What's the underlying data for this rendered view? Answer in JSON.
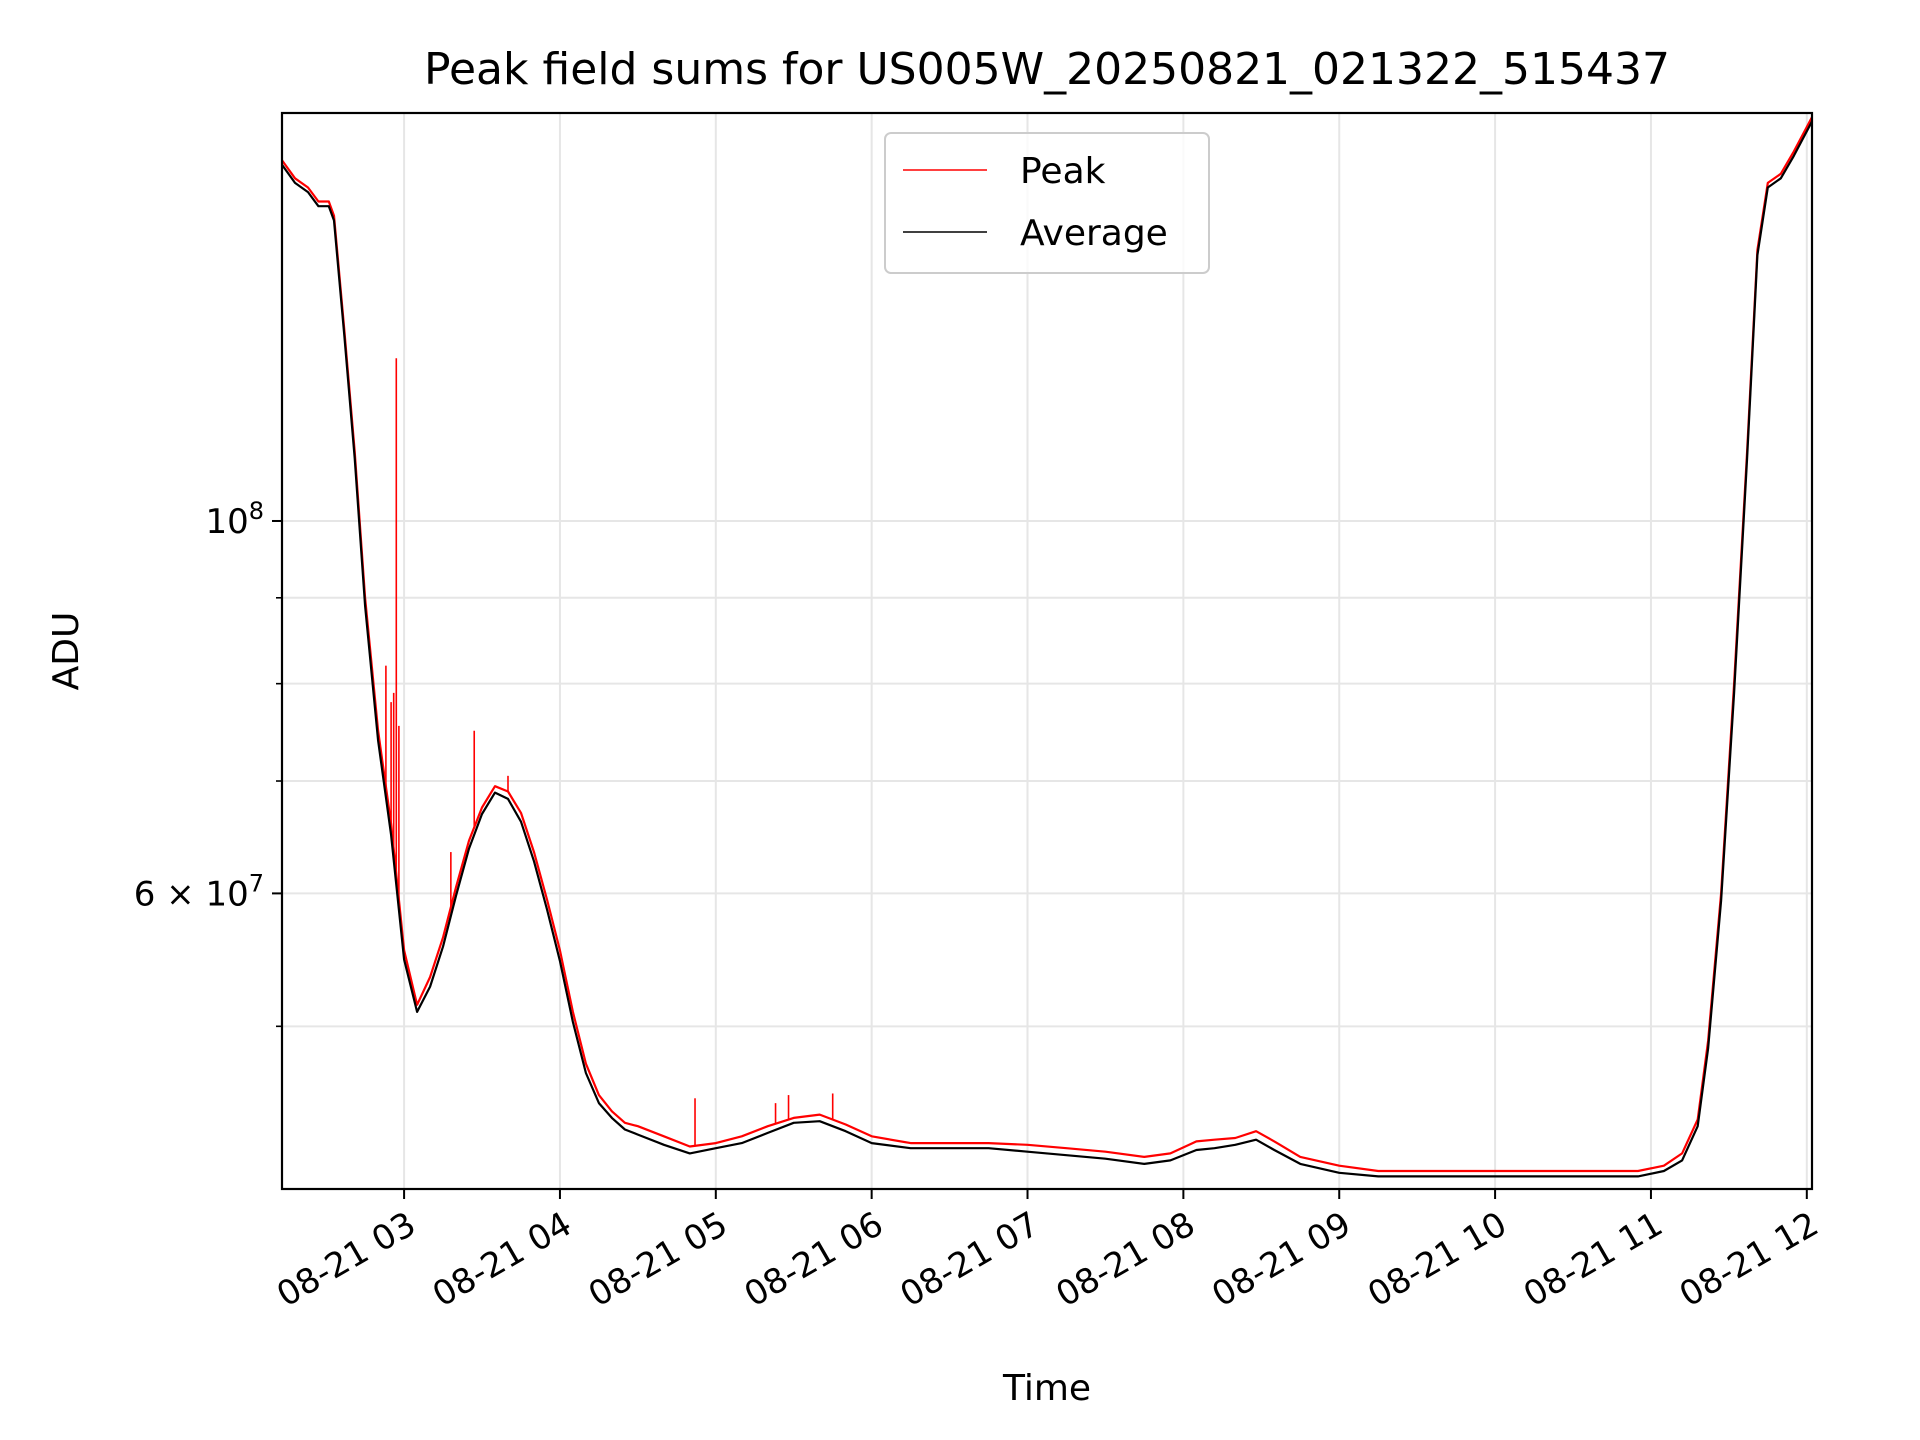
{
  "chart_data": {
    "type": "line",
    "title": "Peak field sums for US005W_20250821_021322_515437",
    "xlabel": "Time",
    "ylabel": "ADU",
    "x_tick_labels": [
      "08-21 03",
      "08-21 04",
      "08-21 05",
      "08-21 06",
      "08-21 07",
      "08-21 08",
      "08-21 09",
      "08-21 10",
      "08-21 11",
      "08-21 12"
    ],
    "x_ticks": [
      "2025-08-21 03:00",
      "2025-08-21 04:00",
      "2025-08-21 05:00",
      "2025-08-21 06:00",
      "2025-08-21 07:00",
      "2025-08-21 08:00",
      "2025-08-21 09:00",
      "2025-08-21 10:00",
      "2025-08-21 11:00",
      "2025-08-21 12:00"
    ],
    "xlim": [
      "2025-08-21 02:13",
      "2025-08-21 12:02"
    ],
    "y_scale": "log",
    "ylim": [
      40000000,
      175000000
    ],
    "y_tick_labels": [
      {
        "value": 100000000,
        "base": "10",
        "exp": "8"
      },
      {
        "value": 60000000,
        "base": "6 × 10",
        "exp": "7"
      }
    ],
    "y_minor_ticks": [
      50000000,
      70000000,
      80000000,
      90000000
    ],
    "grid": true,
    "legend_position": "upper center",
    "series": [
      {
        "name": "Peak",
        "color": "#ff0000",
        "x": [
          "2025-08-21 02:13",
          "2025-08-21 02:18",
          "2025-08-21 02:23",
          "2025-08-21 02:27",
          "2025-08-21 02:31",
          "2025-08-21 02:33",
          "2025-08-21 02:37",
          "2025-08-21 02:41",
          "2025-08-21 02:45",
          "2025-08-21 02:50",
          "2025-08-21 02:55",
          "2025-08-21 03:00",
          "2025-08-21 03:05",
          "2025-08-21 03:10",
          "2025-08-21 03:15",
          "2025-08-21 03:20",
          "2025-08-21 03:25",
          "2025-08-21 03:30",
          "2025-08-21 03:35",
          "2025-08-21 03:40",
          "2025-08-21 03:45",
          "2025-08-21 03:50",
          "2025-08-21 03:55",
          "2025-08-21 04:00",
          "2025-08-21 04:05",
          "2025-08-21 04:10",
          "2025-08-21 04:15",
          "2025-08-21 04:20",
          "2025-08-21 04:25",
          "2025-08-21 04:30",
          "2025-08-21 04:40",
          "2025-08-21 04:50",
          "2025-08-21 05:00",
          "2025-08-21 05:10",
          "2025-08-21 05:20",
          "2025-08-21 05:30",
          "2025-08-21 05:40",
          "2025-08-21 05:50",
          "2025-08-21 06:00",
          "2025-08-21 06:15",
          "2025-08-21 06:30",
          "2025-08-21 06:45",
          "2025-08-21 07:00",
          "2025-08-21 07:15",
          "2025-08-21 07:30",
          "2025-08-21 07:45",
          "2025-08-21 07:55",
          "2025-08-21 08:05",
          "2025-08-21 08:12",
          "2025-08-21 08:20",
          "2025-08-21 08:28",
          "2025-08-21 08:35",
          "2025-08-21 08:45",
          "2025-08-21 09:00",
          "2025-08-21 09:15",
          "2025-08-21 09:30",
          "2025-08-21 10:00",
          "2025-08-21 10:30",
          "2025-08-21 10:55",
          "2025-08-21 11:05",
          "2025-08-21 11:12",
          "2025-08-21 11:18",
          "2025-08-21 11:22",
          "2025-08-21 11:27",
          "2025-08-21 11:32",
          "2025-08-21 11:37",
          "2025-08-21 11:41",
          "2025-08-21 11:45",
          "2025-08-21 11:50",
          "2025-08-21 11:55",
          "2025-08-21 12:02"
        ],
        "values": [
          164000000,
          160000000,
          158000000,
          155000000,
          155000000,
          152000000,
          130000000,
          110000000,
          90000000,
          75000000,
          66000000,
          55500000,
          51500000,
          53500000,
          56500000,
          60500000,
          64500000,
          67500000,
          69500000,
          69000000,
          67000000,
          63500000,
          59500000,
          55500000,
          51000000,
          47500000,
          45500000,
          44500000,
          43800000,
          43600000,
          43000000,
          42400000,
          42600000,
          43000000,
          43600000,
          44100000,
          44300000,
          43700000,
          43000000,
          42600000,
          42600000,
          42600000,
          42500000,
          42300000,
          42100000,
          41800000,
          42000000,
          42700000,
          42800000,
          42900000,
          43300000,
          42700000,
          41800000,
          41300000,
          41000000,
          41000000,
          41000000,
          41000000,
          41000000,
          41300000,
          42000000,
          44000000,
          49000000,
          60000000,
          80000000,
          110000000,
          145000000,
          159000000,
          161000000,
          166000000,
          174000000
        ],
        "spikes": [
          {
            "x": "2025-08-21 02:53",
            "value": 82000000
          },
          {
            "x": "2025-08-21 02:55",
            "value": 78000000
          },
          {
            "x": "2025-08-21 02:56",
            "value": 79000000
          },
          {
            "x": "2025-08-21 02:57",
            "value": 125000000
          },
          {
            "x": "2025-08-21 02:58",
            "value": 75500000
          },
          {
            "x": "2025-08-21 03:18",
            "value": 63500000
          },
          {
            "x": "2025-08-21 03:27",
            "value": 75000000
          },
          {
            "x": "2025-08-21 03:40",
            "value": 70500000
          },
          {
            "x": "2025-08-21 04:52",
            "value": 45300000
          },
          {
            "x": "2025-08-21 05:23",
            "value": 45000000
          },
          {
            "x": "2025-08-21 05:28",
            "value": 45500000
          },
          {
            "x": "2025-08-21 05:45",
            "value": 45600000
          }
        ]
      },
      {
        "name": "Average",
        "color": "#000000",
        "x": [
          "2025-08-21 02:13",
          "2025-08-21 02:18",
          "2025-08-21 02:23",
          "2025-08-21 02:27",
          "2025-08-21 02:31",
          "2025-08-21 02:33",
          "2025-08-21 02:37",
          "2025-08-21 02:41",
          "2025-08-21 02:45",
          "2025-08-21 02:50",
          "2025-08-21 02:55",
          "2025-08-21 03:00",
          "2025-08-21 03:05",
          "2025-08-21 03:10",
          "2025-08-21 03:15",
          "2025-08-21 03:20",
          "2025-08-21 03:25",
          "2025-08-21 03:30",
          "2025-08-21 03:35",
          "2025-08-21 03:40",
          "2025-08-21 03:45",
          "2025-08-21 03:50",
          "2025-08-21 03:55",
          "2025-08-21 04:00",
          "2025-08-21 04:05",
          "2025-08-21 04:10",
          "2025-08-21 04:15",
          "2025-08-21 04:20",
          "2025-08-21 04:25",
          "2025-08-21 04:30",
          "2025-08-21 04:40",
          "2025-08-21 04:50",
          "2025-08-21 05:00",
          "2025-08-21 05:10",
          "2025-08-21 05:20",
          "2025-08-21 05:30",
          "2025-08-21 05:40",
          "2025-08-21 05:50",
          "2025-08-21 06:00",
          "2025-08-21 06:15",
          "2025-08-21 06:30",
          "2025-08-21 06:45",
          "2025-08-21 07:00",
          "2025-08-21 07:15",
          "2025-08-21 07:30",
          "2025-08-21 07:45",
          "2025-08-21 07:55",
          "2025-08-21 08:05",
          "2025-08-21 08:12",
          "2025-08-21 08:20",
          "2025-08-21 08:28",
          "2025-08-21 08:35",
          "2025-08-21 08:45",
          "2025-08-21 09:00",
          "2025-08-21 09:15",
          "2025-08-21 09:30",
          "2025-08-21 10:00",
          "2025-08-21 10:30",
          "2025-08-21 10:55",
          "2025-08-21 11:05",
          "2025-08-21 11:12",
          "2025-08-21 11:18",
          "2025-08-21 11:22",
          "2025-08-21 11:27",
          "2025-08-21 11:32",
          "2025-08-21 11:37",
          "2025-08-21 11:41",
          "2025-08-21 11:45",
          "2025-08-21 11:50",
          "2025-08-21 11:55",
          "2025-08-21 12:02"
        ],
        "values": [
          163000000,
          159000000,
          157000000,
          154000000,
          154000000,
          151000000,
          129000000,
          109000000,
          89000000,
          74000000,
          65000000,
          54800000,
          51000000,
          52800000,
          55800000,
          59800000,
          63800000,
          66900000,
          68900000,
          68300000,
          66200000,
          62700000,
          58700000,
          54700000,
          50300000,
          46900000,
          45000000,
          44100000,
          43400000,
          43100000,
          42500000,
          42000000,
          42300000,
          42600000,
          43200000,
          43800000,
          43900000,
          43300000,
          42600000,
          42300000,
          42300000,
          42300000,
          42100000,
          41900000,
          41700000,
          41400000,
          41600000,
          42200000,
          42300000,
          42500000,
          42800000,
          42200000,
          41400000,
          40900000,
          40700000,
          40700000,
          40700000,
          40700000,
          40700000,
          41000000,
          41600000,
          43600000,
          48500000,
          59400000,
          79000000,
          109000000,
          144000000,
          158000000,
          160000000,
          165000000,
          173000000
        ]
      }
    ]
  }
}
